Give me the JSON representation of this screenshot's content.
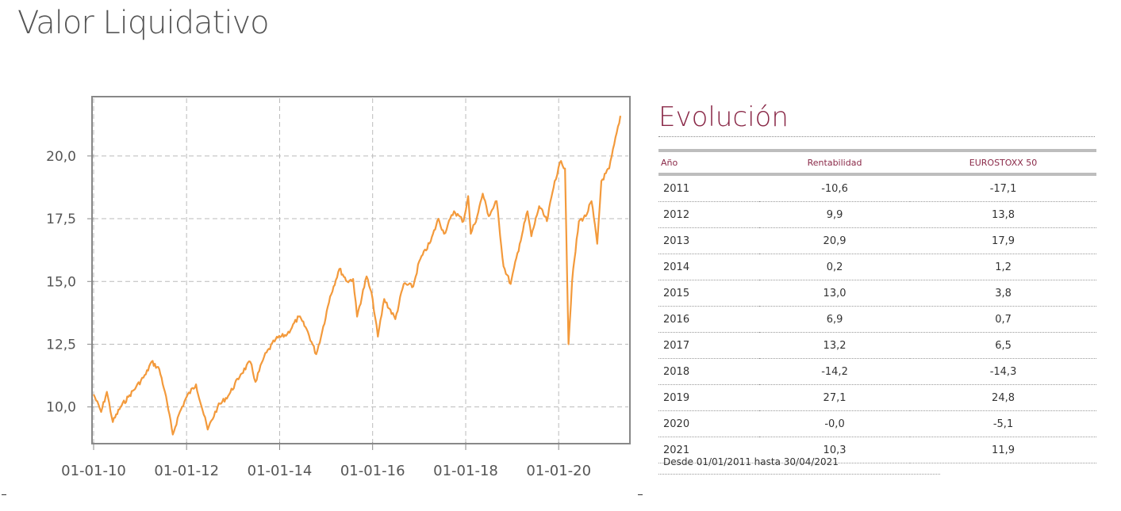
{
  "page_title": "Valor Liquidativo",
  "chart_data": {
    "type": "line",
    "title": "",
    "xlabel": "",
    "ylabel": "",
    "x_ticks": [
      "01-01-10",
      "01-01-12",
      "01-01-14",
      "01-01-16",
      "01-01-18",
      "01-01-20"
    ],
    "y_ticks": [
      "10,0",
      "12,5",
      "15,0",
      "17,5",
      "20,0"
    ],
    "ylim": [
      8.6,
      22.3
    ],
    "xlim": [
      "2010-01-01",
      "2021-07-01"
    ],
    "grid": true,
    "line_color": "#f39a3c",
    "series": [
      {
        "name": "",
        "points": [
          [
            "2010-01-01",
            10.5
          ],
          [
            "2010-03-01",
            9.8
          ],
          [
            "2010-04-15",
            10.6
          ],
          [
            "2010-06-01",
            9.4
          ],
          [
            "2010-08-01",
            10.0
          ],
          [
            "2010-10-01",
            10.4
          ],
          [
            "2010-12-01",
            10.8
          ],
          [
            "2011-02-15",
            11.3
          ],
          [
            "2011-04-01",
            11.8
          ],
          [
            "2011-06-01",
            11.5
          ],
          [
            "2011-07-15",
            10.6
          ],
          [
            "2011-09-15",
            8.9
          ],
          [
            "2011-11-01",
            9.7
          ],
          [
            "2012-01-01",
            10.4
          ],
          [
            "2012-03-15",
            10.9
          ],
          [
            "2012-05-15",
            9.7
          ],
          [
            "2012-06-15",
            9.1
          ],
          [
            "2012-09-01",
            10.0
          ],
          [
            "2012-12-01",
            10.5
          ],
          [
            "2013-03-01",
            11.3
          ],
          [
            "2013-05-15",
            11.8
          ],
          [
            "2013-06-25",
            11.0
          ],
          [
            "2013-09-01",
            12.0
          ],
          [
            "2013-12-01",
            12.7
          ],
          [
            "2014-03-01",
            12.9
          ],
          [
            "2014-06-01",
            13.6
          ],
          [
            "2014-08-01",
            13.1
          ],
          [
            "2014-10-15",
            12.1
          ],
          [
            "2014-12-01",
            13.0
          ],
          [
            "2015-02-01",
            14.4
          ],
          [
            "2015-04-15",
            15.5
          ],
          [
            "2015-06-15",
            15.0
          ],
          [
            "2015-08-01",
            15.1
          ],
          [
            "2015-09-01",
            13.6
          ],
          [
            "2015-11-15",
            15.2
          ],
          [
            "2016-01-01",
            14.3
          ],
          [
            "2016-02-11",
            12.8
          ],
          [
            "2016-04-01",
            14.3
          ],
          [
            "2016-06-27",
            13.5
          ],
          [
            "2016-09-01",
            14.9
          ],
          [
            "2016-11-15",
            14.8
          ],
          [
            "2017-01-01",
            15.8
          ],
          [
            "2017-04-01",
            16.6
          ],
          [
            "2017-06-01",
            17.5
          ],
          [
            "2017-07-15",
            16.9
          ],
          [
            "2017-10-01",
            17.8
          ],
          [
            "2017-12-15",
            17.4
          ],
          [
            "2018-01-20",
            18.4
          ],
          [
            "2018-02-10",
            16.9
          ],
          [
            "2018-04-01",
            17.6
          ],
          [
            "2018-05-15",
            18.5
          ],
          [
            "2018-07-01",
            17.6
          ],
          [
            "2018-09-01",
            18.2
          ],
          [
            "2018-10-25",
            15.6
          ],
          [
            "2018-12-20",
            14.9
          ],
          [
            "2019-03-01",
            16.5
          ],
          [
            "2019-05-01",
            17.8
          ],
          [
            "2019-06-01",
            16.8
          ],
          [
            "2019-08-01",
            18.0
          ],
          [
            "2019-10-01",
            17.4
          ],
          [
            "2019-12-01",
            19.0
          ],
          [
            "2020-01-20",
            19.8
          ],
          [
            "2020-02-20",
            19.5
          ],
          [
            "2020-03-18",
            12.5
          ],
          [
            "2020-04-15",
            15.0
          ],
          [
            "2020-06-08",
            17.4
          ],
          [
            "2020-08-01",
            17.6
          ],
          [
            "2020-09-15",
            18.2
          ],
          [
            "2020-10-30",
            16.5
          ],
          [
            "2020-12-01",
            19.0
          ],
          [
            "2021-02-01",
            19.5
          ],
          [
            "2021-04-30",
            21.6
          ]
        ]
      }
    ]
  },
  "evolucion": {
    "title": "Evolución",
    "headers": {
      "year": "Año",
      "rentabilidad": "Rentabilidad",
      "eurostoxx": "EUROSTOXX 50"
    },
    "rows": [
      {
        "year": "2011",
        "rentabilidad": "-10,6",
        "eurostoxx": "-17,1"
      },
      {
        "year": "2012",
        "rentabilidad": "9,9",
        "eurostoxx": "13,8"
      },
      {
        "year": "2013",
        "rentabilidad": "20,9",
        "eurostoxx": "17,9"
      },
      {
        "year": "2014",
        "rentabilidad": "0,2",
        "eurostoxx": "1,2"
      },
      {
        "year": "2015",
        "rentabilidad": "13,0",
        "eurostoxx": "3,8"
      },
      {
        "year": "2016",
        "rentabilidad": "6,9",
        "eurostoxx": "0,7"
      },
      {
        "year": "2017",
        "rentabilidad": "13,2",
        "eurostoxx": "6,5"
      },
      {
        "year": "2018",
        "rentabilidad": "-14,2",
        "eurostoxx": "-14,3"
      },
      {
        "year": "2019",
        "rentabilidad": "27,1",
        "eurostoxx": "24,8"
      },
      {
        "year": "2020",
        "rentabilidad": "-0,0",
        "eurostoxx": "-5,1"
      },
      {
        "year": "2021",
        "rentabilidad": "10,3",
        "eurostoxx": "11,9"
      }
    ],
    "footnote": "Desde 01/01/2011 hasta 30/04/2021"
  }
}
